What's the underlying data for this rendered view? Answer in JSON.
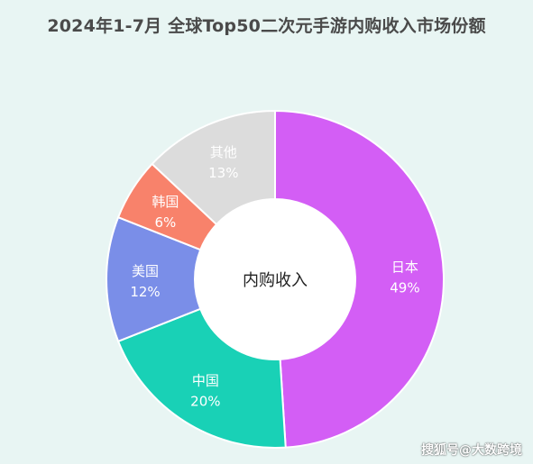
{
  "chart_data": {
    "type": "pie",
    "title": "2024年1-7月 全球Top50二次元手游内购收入市场份额",
    "center_label": "内购收入",
    "slices": [
      {
        "label": "日本",
        "value": 49,
        "value_text": "49%",
        "color": "#d35ef5"
      },
      {
        "label": "中国",
        "value": 20,
        "value_text": "20%",
        "color": "#19d1b6"
      },
      {
        "label": "美国",
        "value": 12,
        "value_text": "12%",
        "color": "#7a8ee8"
      },
      {
        "label": "韩国",
        "value": 6,
        "value_text": "6%",
        "color": "#f8826b"
      },
      {
        "label": "其他",
        "value": 13,
        "value_text": "13%",
        "color": "#dcdcdc"
      }
    ]
  },
  "watermark": "搜狐号@大数跨境"
}
